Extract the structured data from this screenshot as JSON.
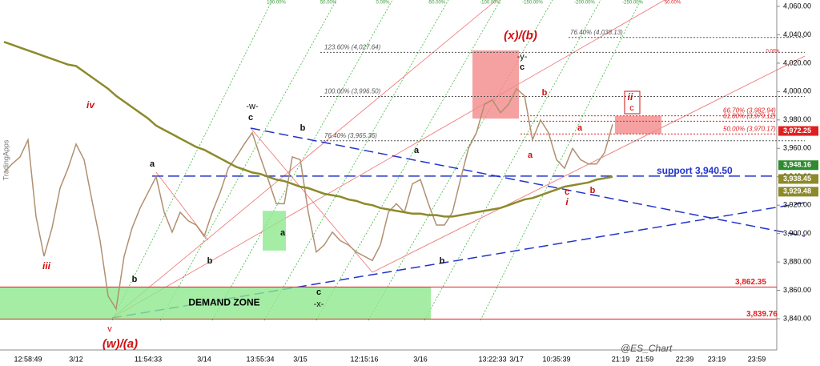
{
  "chart_data": {
    "type": "line",
    "watermark": "@ES_Chart",
    "brand": "TradingApps",
    "ylim": [
      3818,
      4064.5
    ],
    "yticks": [
      {
        "value": 3840,
        "label": "3,840.00"
      },
      {
        "value": 3860,
        "label": "3,860.00"
      },
      {
        "value": 3880,
        "label": "3,880.00"
      },
      {
        "value": 3900,
        "label": "3,900.00"
      },
      {
        "value": 3920,
        "label": "3,920.00"
      },
      {
        "value": 3940,
        "label": "3,940.00"
      },
      {
        "value": 3960,
        "label": "3,960.00"
      },
      {
        "value": 3980,
        "label": "3,980.00"
      },
      {
        "value": 4000,
        "label": "4,000.00"
      },
      {
        "value": 4020,
        "label": "4,020.00"
      },
      {
        "value": 4040,
        "label": "4,040.00"
      },
      {
        "value": 4060,
        "label": "4,060.00"
      }
    ],
    "categories": [
      null,
      null,
      null,
      "12:58:49",
      null,
      null,
      null,
      null,
      null,
      "3/12",
      null,
      null,
      null,
      null,
      null,
      null,
      null,
      null,
      "11:54:33",
      null,
      null,
      null,
      null,
      null,
      null,
      "3/14",
      null,
      null,
      null,
      null,
      null,
      null,
      "13:55:34",
      null,
      null,
      null,
      null,
      "3/15",
      null,
      null,
      null,
      null,
      null,
      null,
      null,
      "12:15:16",
      null,
      null,
      null,
      null,
      null,
      null,
      "3/16",
      null,
      null,
      null,
      null,
      null,
      null,
      null,
      null,
      "13:22:33",
      null,
      null,
      "3/17",
      null,
      null,
      null,
      null,
      "10:35:39",
      null,
      null,
      null,
      null,
      null,
      null,
      null,
      "21:19",
      null,
      null,
      "21:59",
      null,
      null,
      null,
      null,
      "22:39",
      null,
      null,
      null,
      "23:19",
      null,
      null,
      null,
      null,
      "23:59",
      null,
      null
    ],
    "series": [
      {
        "color": "#b09070",
        "values": [
          3943,
          3949,
          3954,
          3966,
          3912,
          3884,
          3904,
          3932,
          3946,
          3963,
          3952,
          3923,
          3895,
          3856,
          3847,
          3884,
          3904,
          3918,
          3929,
          3940,
          3915,
          3901,
          3915,
          3909,
          3906,
          3898,
          3915,
          3929,
          3946,
          3954,
          3963,
          3971,
          3954,
          3938,
          3921,
          3921,
          3954,
          3952,
          3915,
          3887,
          3892,
          3901,
          3895,
          3892,
          3887,
          3884,
          3881,
          3892,
          3915,
          3921,
          3915,
          3935,
          3938,
          3921,
          3906,
          3906,
          3915,
          3938,
          3960,
          3971,
          3991,
          3994,
          3985,
          3991,
          4002,
          3997,
          3966,
          3980,
          3971,
          3952,
          3946,
          3960,
          3952,
          3949,
          3949,
          3957,
          3977,
          null,
          null,
          null,
          null,
          null,
          null,
          null,
          null,
          null,
          null,
          null,
          null,
          null,
          null,
          null,
          null,
          null,
          null,
          null,
          null
        ]
      },
      {
        "color": "#8c8a2a",
        "values": [
          4035,
          4033,
          4031,
          4029,
          4027,
          4025,
          4023,
          4021,
          4019,
          4018,
          4014,
          4010,
          4006,
          4002,
          3997,
          3993,
          3989,
          3985,
          3981,
          3976,
          3973,
          3970,
          3967,
          3964,
          3961,
          3959,
          3956,
          3953,
          3950,
          3947,
          3945,
          3943,
          3942,
          3940,
          3938,
          3937,
          3935,
          3933,
          3932,
          3930,
          3928,
          3927,
          3926,
          3924,
          3923,
          3921,
          3920,
          3918,
          3917,
          3916,
          3915,
          3914,
          3914,
          3913,
          3913,
          3912,
          3912,
          3913,
          3914,
          3915,
          3916,
          3917,
          3918,
          3920,
          3922,
          3924,
          3925,
          3927,
          3929,
          3931,
          3933,
          3934,
          3935,
          3936,
          3938,
          3939,
          3940,
          null,
          null,
          null,
          null,
          null,
          null,
          null,
          null,
          null,
          null,
          null,
          null,
          null,
          null,
          null,
          null,
          null,
          null,
          null,
          null
        ]
      }
    ],
    "zones": [
      {
        "text": "DEMAND ZONE",
        "low": 3839.76,
        "high": 3862.35,
        "color": "#8ee88e"
      },
      {
        "low": 3981,
        "high": 4029,
        "color": "#f48a8a"
      },
      {
        "low": 3888,
        "high": 3916,
        "color": "#8ee88e"
      },
      {
        "low": 3970.17,
        "high": 3982.94,
        "color": "#f48a8a"
      }
    ],
    "levels": [
      {
        "label": "123.60% (4,027.64)",
        "value": 4027.64,
        "color": "#555555"
      },
      {
        "label": "100.00% (3,996.50)",
        "value": 3996.5,
        "color": "#555555"
      },
      {
        "label": "76.40% (3,965.36)",
        "value": 3965.36,
        "color": "#555555"
      },
      {
        "label": "76.40% (4,038.13)",
        "value": 4038.13,
        "color": "#555555"
      },
      {
        "label": "66.70% (3,982.94)",
        "value": 3982.94,
        "color": "#e02020"
      },
      {
        "label": "61.80% (3,979.12)",
        "value": 3979.12,
        "color": "#e02020"
      },
      {
        "label": "50.00% (3,970.17)",
        "value": 3970.17,
        "color": "#e02020"
      },
      {
        "label": "support 3,940.50",
        "value": 3940.5,
        "color": "#2233cc"
      },
      {
        "label": "3,862.35",
        "value": 3862.35,
        "color": "#e02020"
      },
      {
        "label": "3,839.76",
        "value": 3839.76,
        "color": "#e02020"
      }
    ],
    "price_tags": [
      {
        "label": "3,972.25",
        "value": 3972.25,
        "color": "#e02020"
      },
      {
        "label": "3,948.16",
        "value": 3948.16,
        "color": "#2e8b2e"
      },
      {
        "label": "3,938.45",
        "value": 3938.45,
        "color": "#8c8a2a"
      },
      {
        "label": "3,929.48",
        "value": 3929.48,
        "color": "#8c8a2a"
      }
    ],
    "fan_labels": [
      "100.00%",
      "50.00%",
      "0.00%",
      "-50.00%",
      "-100.00%",
      "-150.00%",
      "-200.00%",
      "-250.00%",
      "50.00%",
      "0.00%"
    ],
    "annotations": [
      "iv",
      "iii",
      "v",
      "(w)/(a)",
      "a",
      "b",
      "b",
      "-w-",
      "c",
      "b",
      "a",
      "c",
      "-x-",
      "a",
      "b",
      "(x)/(b)",
      "-y-",
      "c",
      "b",
      "a",
      "a",
      "c",
      "b",
      "i",
      "ii",
      "c"
    ]
  }
}
